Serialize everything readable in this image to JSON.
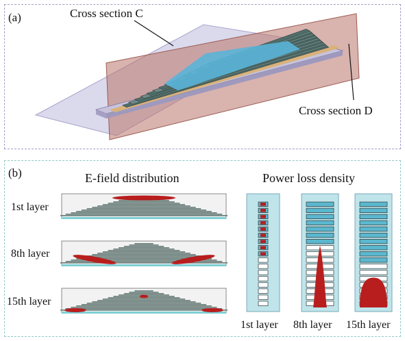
{
  "panel_a": {
    "label": "(a)",
    "cross_section_c": "Cross section C",
    "cross_section_d": "Cross section D"
  },
  "panel_b": {
    "label": "(b)",
    "efield_title": "E-field distribution",
    "power_title": "Power loss density",
    "efield_rows": [
      "1st layer",
      "8th layer",
      "15th layer"
    ],
    "power_columns": [
      "1st layer",
      "8th layer",
      "15th layer"
    ]
  },
  "colors": {
    "plane_c": "#c9c6e2",
    "plane_d": "#b9746a",
    "accent_cyan": "#57b7cf",
    "layer_gray": "#6f8683",
    "hot_red": "#b81e1e"
  }
}
